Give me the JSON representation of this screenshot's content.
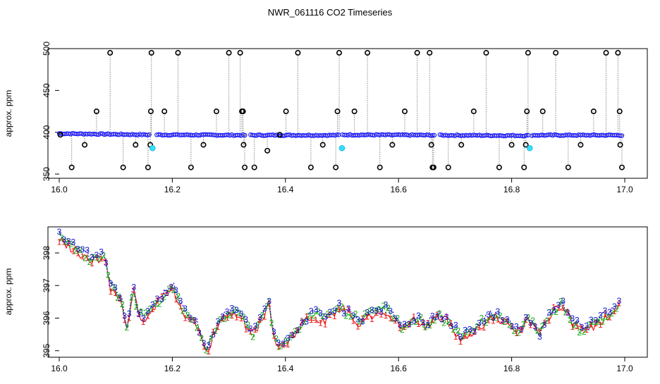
{
  "title": "NWR_061116  CO2 Timeseries",
  "chart_data": [
    {
      "type": "scatter",
      "title": "",
      "xlabel": "",
      "ylabel": "approx. ppm",
      "xlim": [
        16.0,
        17.0
      ],
      "ylim": [
        345,
        500
      ],
      "xticks": [
        "16.0",
        "16.2",
        "16.4",
        "16.6",
        "16.8",
        "17.0"
      ],
      "yticks": [
        "350",
        "400",
        "450",
        "500"
      ],
      "grid": false,
      "legend": "none",
      "baseline": {
        "x": [
          16.0,
          16.16,
          16.17,
          16.33,
          16.335,
          16.495,
          16.5,
          16.665,
          16.67,
          16.83,
          16.835,
          16.995
        ],
        "y": [
          398.5,
          397.0,
          397.0,
          396.5,
          396.5,
          396.5,
          397.0,
          396.5,
          396.5,
          396.0,
          396.5,
          396.5
        ]
      },
      "spikes": {
        "x": [
          16.002,
          16.022,
          16.045,
          16.066,
          16.09,
          16.113,
          16.135,
          16.157,
          16.161,
          16.162,
          16.163,
          16.186,
          16.21,
          16.233,
          16.255,
          16.278,
          16.3,
          16.32,
          16.323,
          16.325,
          16.326,
          16.328,
          16.345,
          16.368,
          16.39,
          16.401,
          16.422,
          16.445,
          16.466,
          16.489,
          16.492,
          16.495,
          16.522,
          16.545,
          16.567,
          16.589,
          16.611,
          16.633,
          16.655,
          16.658,
          16.66,
          16.662,
          16.688,
          16.711,
          16.733,
          16.755,
          16.778,
          16.8,
          16.822,
          16.825,
          16.827,
          16.829,
          16.855,
          16.878,
          16.9,
          16.922,
          16.945,
          16.967,
          16.988,
          16.991,
          16.992,
          16.995
        ],
        "y": [
          397,
          358,
          385,
          425,
          495,
          358,
          385,
          358,
          385,
          425,
          495,
          425,
          495,
          358,
          385,
          425,
          495,
          495,
          425,
          425,
          385,
          358,
          358,
          378,
          397,
          425,
          495,
          358,
          385,
          358,
          425,
          495,
          425,
          495,
          358,
          385,
          425,
          495,
          495,
          385,
          358,
          358,
          358,
          385,
          425,
          495,
          358,
          385,
          358,
          385,
          425,
          495,
          425,
          495,
          358,
          385,
          425,
          495,
          495,
          425,
          385,
          358
        ]
      },
      "cyan_points": {
        "x": [
          16.165,
          16.5,
          16.832
        ],
        "y": [
          381,
          381,
          381
        ]
      }
    },
    {
      "type": "line",
      "title": "",
      "xlabel": "",
      "ylabel": "approx. ppm",
      "xlim": [
        16.0,
        17.0
      ],
      "ylim": [
        394.8,
        398.8
      ],
      "xticks": [
        "16.0",
        "16.2",
        "16.4",
        "16.6",
        "16.8",
        "17.0"
      ],
      "yticks": [
        "395",
        "396",
        "397",
        "398"
      ],
      "grid": false,
      "legend": "none",
      "plot_characters": [
        "1",
        "2",
        "3"
      ],
      "anchors": {
        "x": [
          16.0,
          16.02,
          16.04,
          16.06,
          16.08,
          16.09,
          16.1,
          16.11,
          16.12,
          16.13,
          16.14,
          16.15,
          16.16,
          16.18,
          16.2,
          16.22,
          16.24,
          16.26,
          16.28,
          16.3,
          16.32,
          16.34,
          16.36,
          16.37,
          16.38,
          16.39,
          16.41,
          16.43,
          16.45,
          16.47,
          16.49,
          16.51,
          16.53,
          16.55,
          16.57,
          16.59,
          16.61,
          16.63,
          16.65,
          16.67,
          16.69,
          16.71,
          16.73,
          16.75,
          16.77,
          16.79,
          16.81,
          16.83,
          16.85,
          16.87,
          16.89,
          16.91,
          16.93,
          16.95,
          16.97,
          16.99
        ],
        "y": [
          398.5,
          398.2,
          398.0,
          397.8,
          397.9,
          397.0,
          396.8,
          396.6,
          395.6,
          396.9,
          396.2,
          396.0,
          396.2,
          396.6,
          397.0,
          396.2,
          396.0,
          395.0,
          395.8,
          396.2,
          396.1,
          395.5,
          396.0,
          396.6,
          395.4,
          395.1,
          395.4,
          395.9,
          396.1,
          396.0,
          396.3,
          396.2,
          395.9,
          396.1,
          396.3,
          396.1,
          395.7,
          396.0,
          395.8,
          396.1,
          395.9,
          395.4,
          395.6,
          395.9,
          396.1,
          395.9,
          395.6,
          396.0,
          395.5,
          396.2,
          396.4,
          395.8,
          395.6,
          395.9,
          396.1,
          396.4
        ]
      }
    }
  ]
}
